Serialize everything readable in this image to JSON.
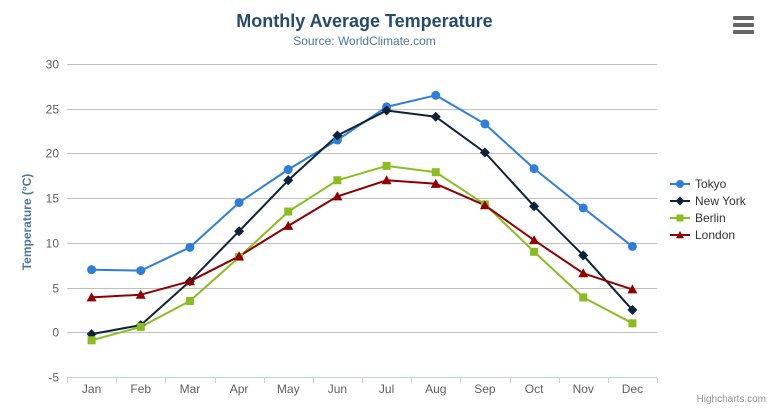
{
  "chart_data": {
    "type": "line",
    "title": "Monthly Average Temperature",
    "subtitle": "Source: WorldClimate.com",
    "xlabel": "",
    "ylabel": "Temperature (°C)",
    "ylim": [
      -5,
      30
    ],
    "y_ticks": [
      -5,
      0,
      5,
      10,
      15,
      20,
      25,
      30
    ],
    "grid": true,
    "legend_position": "right",
    "categories": [
      "Jan",
      "Feb",
      "Mar",
      "Apr",
      "May",
      "Jun",
      "Jul",
      "Aug",
      "Sep",
      "Oct",
      "Nov",
      "Dec"
    ],
    "series": [
      {
        "name": "Tokyo",
        "color": "#2f7ed8",
        "marker": "circle",
        "values": [
          7.0,
          6.9,
          9.5,
          14.5,
          18.2,
          21.5,
          25.2,
          26.5,
          23.3,
          18.3,
          13.9,
          9.6
        ]
      },
      {
        "name": "New York",
        "color": "#0d233a",
        "marker": "diamond",
        "values": [
          -0.2,
          0.8,
          5.7,
          11.3,
          17.0,
          22.0,
          24.8,
          24.1,
          20.1,
          14.1,
          8.6,
          2.5
        ]
      },
      {
        "name": "Berlin",
        "color": "#8bbc21",
        "marker": "square",
        "values": [
          -0.9,
          0.6,
          3.5,
          8.4,
          13.5,
          17.0,
          18.6,
          17.9,
          14.3,
          9.0,
          3.9,
          1.0
        ]
      },
      {
        "name": "London",
        "color": "#910000",
        "marker": "triangle",
        "values": [
          3.9,
          4.2,
          5.7,
          8.5,
          11.9,
          15.2,
          17.0,
          16.6,
          14.2,
          10.3,
          6.6,
          4.8
        ]
      }
    ],
    "colors": {
      "title": "#274b6d",
      "subtitle": "#4d759e",
      "axis_title": "#4d759e",
      "tick_labels": "#606060",
      "gridline": "#c0c0c0",
      "axis_line": "#c0d0e0",
      "legend_text": "#333333",
      "credits": "#909090",
      "export_icon": "#666666"
    }
  },
  "credits": {
    "label": "Highcharts.com"
  },
  "export_menu": {
    "icon": "hamburger-icon"
  }
}
